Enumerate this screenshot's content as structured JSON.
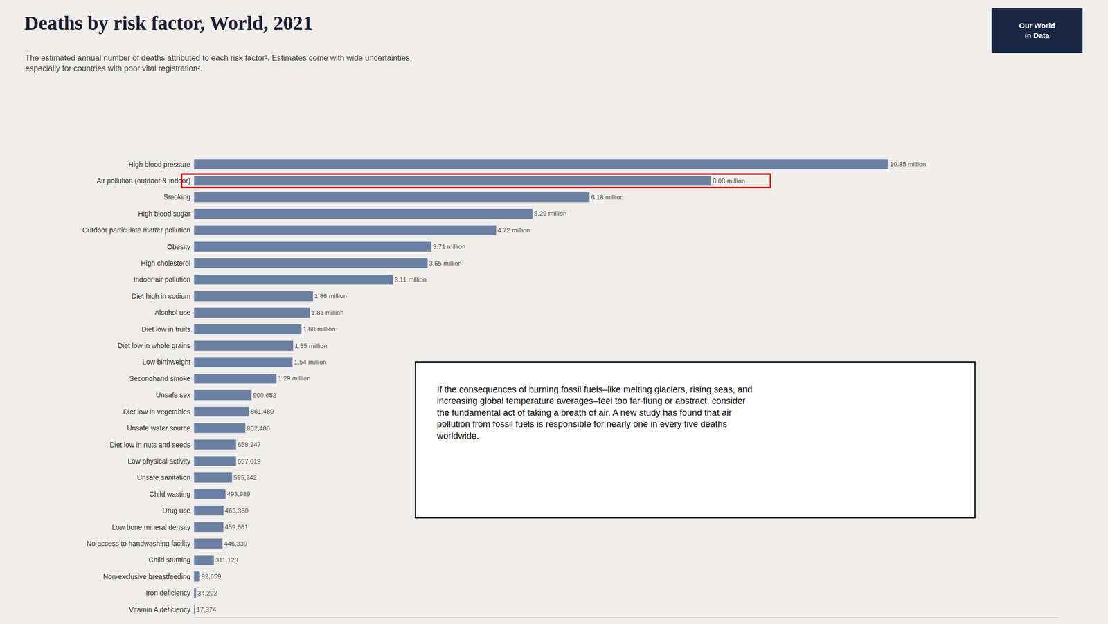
{
  "chart_data": {
    "type": "bar",
    "orientation": "horizontal",
    "title": "Deaths by risk factor, World, 2021",
    "subtitle": "The estimated annual number of deaths attributed to each risk factor¹. Estimates come with wide uncertainties,\nespecially for countries with poor vital registration².",
    "categories": [
      "High blood pressure",
      "Air pollution (outdoor & indoor)",
      "Smoking",
      "High blood sugar",
      "Outdoor particulate matter pollution",
      "Obesity",
      "High cholesterol",
      "Indoor air pollution",
      "Diet high in sodium",
      "Alcohol use",
      "Diet low in fruits",
      "Diet low in whole grains",
      "Low birthweight",
      "Secondhand smoke",
      "Unsafe sex",
      "Diet low in vegetables",
      "Unsafe water source",
      "Diet low in nuts and seeds",
      "Low physical activity",
      "Unsafe sanitation",
      "Child wasting",
      "Drug use",
      "Low bone mineral density",
      "No access to handwashing facility",
      "Child stunting",
      "Non-exclusive breastfeeding",
      "Iron deficiency",
      "Vitamin A deficiency"
    ],
    "values": [
      10850000,
      8080000,
      6180000,
      5290000,
      4720000,
      3710000,
      3650000,
      3110000,
      1860000,
      1810000,
      1680000,
      1550000,
      1540000,
      1290000,
      900652,
      861480,
      802486,
      658247,
      657619,
      595242,
      493989,
      463360,
      459661,
      446330,
      311123,
      92659,
      34292,
      17374
    ],
    "value_labels": [
      "10.85 million",
      "8.08 million",
      "6.18 million",
      "5.29 million",
      "4.72 million",
      "3.71 million",
      "3.65 million",
      "3.11 million",
      "1.86 million",
      "1.81 million",
      "1.68 million",
      "1.55 million",
      "1.54 million",
      "1.29 million",
      "900,652",
      "861,480",
      "802,486",
      "658,247",
      "657,619",
      "595,242",
      "493,989",
      "463,360",
      "459,661",
      "446,330",
      "311,123",
      "92,659",
      "34,292",
      "17,374"
    ],
    "data_labels": true,
    "color": "#6b7fa3",
    "xlim": [
      0,
      13500000
    ],
    "tick_labels": "y",
    "grid": false,
    "highlight": {
      "category": "Air pollution (outdoor & indoor)",
      "color": "#cc0000"
    },
    "annotation": "If the consequences of burning fossil fuels–like melting glaciers, rising seas, and\nincreasing global temperature averages–feel too far-flung or abstract, consider\nthe fundamental act of taking a breath of air. A new study has found that air\npollution from fossil fuels is responsible for nearly one in every five deaths\nworldwide.",
    "logo": "Our World\nin Data"
  }
}
